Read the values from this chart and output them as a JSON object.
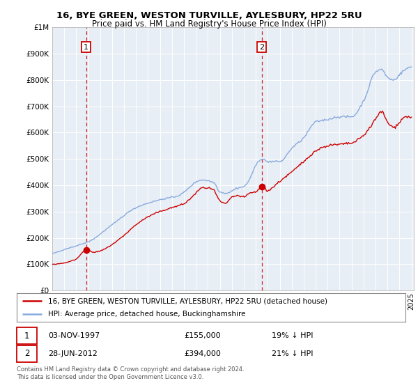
{
  "title": "16, BYE GREEN, WESTON TURVILLE, AYLESBURY, HP22 5RU",
  "subtitle": "Price paid vs. HM Land Registry's House Price Index (HPI)",
  "red_line_label": "16, BYE GREEN, WESTON TURVILLE, AYLESBURY, HP22 5RU (detached house)",
  "blue_line_label": "HPI: Average price, detached house, Buckinghamshire",
  "transaction1_date": "03-NOV-1997",
  "transaction1_price": "£155,000",
  "transaction1_hpi": "19% ↓ HPI",
  "transaction2_date": "28-JUN-2012",
  "transaction2_price": "£394,000",
  "transaction2_hpi": "21% ↓ HPI",
  "footer": "Contains HM Land Registry data © Crown copyright and database right 2024.\nThis data is licensed under the Open Government Licence v3.0.",
  "red_color": "#cc0000",
  "blue_color": "#88aadd",
  "vline_color": "#cc0000",
  "background_color": "#ffffff",
  "plot_bg_color": "#e8eef5",
  "grid_color": "#ffffff",
  "ylim": [
    0,
    1000000
  ],
  "yticks": [
    0,
    100000,
    200000,
    300000,
    400000,
    500000,
    600000,
    700000,
    800000,
    900000,
    1000000
  ],
  "year_start": 1995,
  "year_end": 2025,
  "marker1_year": 1997.83,
  "marker1_val": 155000,
  "marker2_year": 2012.5,
  "marker2_val": 394000
}
